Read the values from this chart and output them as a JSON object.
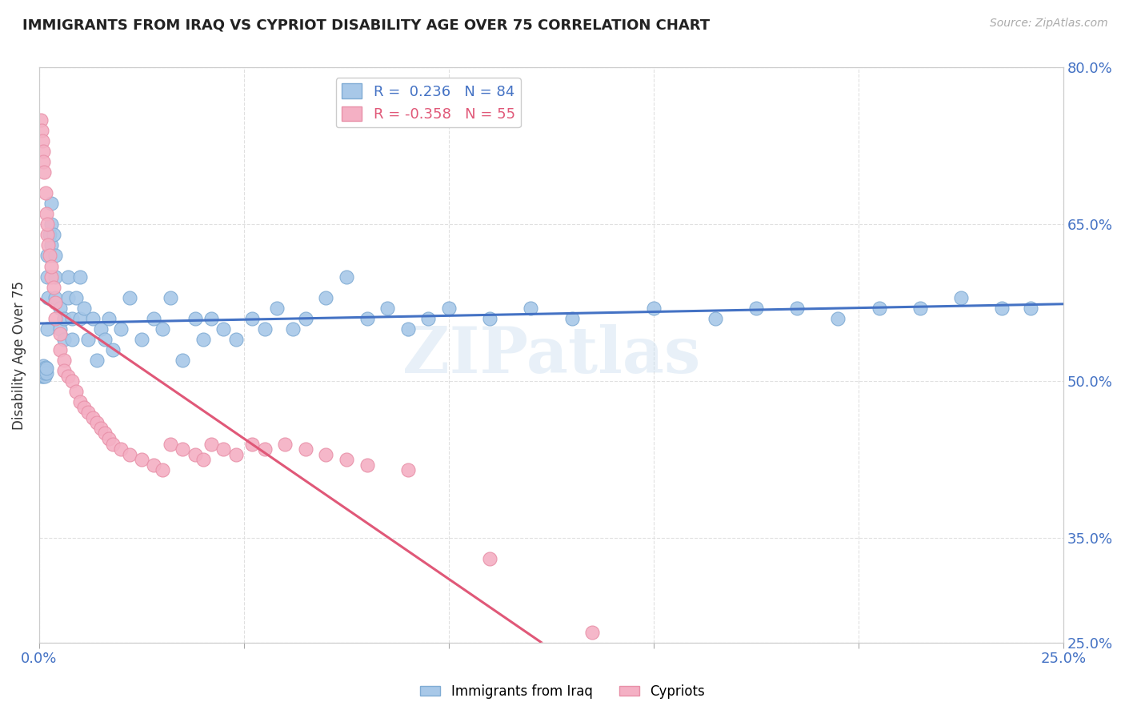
{
  "title": "IMMIGRANTS FROM IRAQ VS CYPRIOT DISABILITY AGE OVER 75 CORRELATION CHART",
  "source": "Source: ZipAtlas.com",
  "ylabel": "Disability Age Over 75",
  "xlim": [
    0.0,
    0.25
  ],
  "ylim": [
    0.25,
    0.8
  ],
  "xticks": [
    0.0,
    0.05,
    0.1,
    0.15,
    0.2,
    0.25
  ],
  "yticks": [
    0.25,
    0.35,
    0.5,
    0.65,
    0.8
  ],
  "watermark": "ZIPatlas",
  "legend_entries": [
    {
      "label": "Immigrants from Iraq",
      "R": "0.236",
      "N": 84,
      "color": "#a8c4e0"
    },
    {
      "label": "Cypriots",
      "R": "-0.358",
      "N": 55,
      "color": "#f4a7b9"
    }
  ],
  "iraq_x": [
    0.0003,
    0.0005,
    0.0006,
    0.0007,
    0.0008,
    0.001,
    0.001,
    0.001,
    0.001,
    0.0012,
    0.0013,
    0.0014,
    0.0015,
    0.0016,
    0.0017,
    0.0018,
    0.002,
    0.002,
    0.002,
    0.0022,
    0.0025,
    0.003,
    0.003,
    0.003,
    0.0035,
    0.004,
    0.004,
    0.004,
    0.005,
    0.005,
    0.006,
    0.006,
    0.007,
    0.007,
    0.008,
    0.008,
    0.009,
    0.01,
    0.01,
    0.011,
    0.012,
    0.013,
    0.014,
    0.015,
    0.016,
    0.017,
    0.018,
    0.02,
    0.022,
    0.025,
    0.028,
    0.03,
    0.032,
    0.035,
    0.038,
    0.04,
    0.042,
    0.045,
    0.048,
    0.052,
    0.055,
    0.058,
    0.062,
    0.065,
    0.07,
    0.075,
    0.08,
    0.085,
    0.09,
    0.095,
    0.1,
    0.11,
    0.12,
    0.13,
    0.15,
    0.165,
    0.175,
    0.185,
    0.195,
    0.205,
    0.215,
    0.225,
    0.235,
    0.242
  ],
  "iraq_y": [
    0.508,
    0.505,
    0.51,
    0.512,
    0.507,
    0.505,
    0.508,
    0.512,
    0.515,
    0.51,
    0.505,
    0.508,
    0.513,
    0.51,
    0.508,
    0.512,
    0.55,
    0.6,
    0.62,
    0.58,
    0.64,
    0.65,
    0.63,
    0.67,
    0.64,
    0.6,
    0.62,
    0.58,
    0.55,
    0.57,
    0.54,
    0.56,
    0.6,
    0.58,
    0.56,
    0.54,
    0.58,
    0.56,
    0.6,
    0.57,
    0.54,
    0.56,
    0.52,
    0.55,
    0.54,
    0.56,
    0.53,
    0.55,
    0.58,
    0.54,
    0.56,
    0.55,
    0.58,
    0.52,
    0.56,
    0.54,
    0.56,
    0.55,
    0.54,
    0.56,
    0.55,
    0.57,
    0.55,
    0.56,
    0.58,
    0.6,
    0.56,
    0.57,
    0.55,
    0.56,
    0.57,
    0.56,
    0.57,
    0.56,
    0.57,
    0.56,
    0.57,
    0.57,
    0.56,
    0.57,
    0.57,
    0.58,
    0.57,
    0.57
  ],
  "cyprus_x": [
    0.0003,
    0.0005,
    0.0007,
    0.001,
    0.001,
    0.0012,
    0.0015,
    0.0018,
    0.002,
    0.002,
    0.0022,
    0.0025,
    0.003,
    0.003,
    0.0035,
    0.004,
    0.004,
    0.005,
    0.005,
    0.006,
    0.006,
    0.007,
    0.008,
    0.009,
    0.01,
    0.011,
    0.012,
    0.013,
    0.014,
    0.015,
    0.016,
    0.017,
    0.018,
    0.02,
    0.022,
    0.025,
    0.028,
    0.03,
    0.032,
    0.035,
    0.038,
    0.04,
    0.042,
    0.045,
    0.048,
    0.052,
    0.055,
    0.06,
    0.065,
    0.07,
    0.075,
    0.08,
    0.09,
    0.11,
    0.135
  ],
  "cyprus_y": [
    0.75,
    0.74,
    0.73,
    0.72,
    0.71,
    0.7,
    0.68,
    0.66,
    0.64,
    0.65,
    0.63,
    0.62,
    0.6,
    0.61,
    0.59,
    0.575,
    0.56,
    0.545,
    0.53,
    0.52,
    0.51,
    0.505,
    0.5,
    0.49,
    0.48,
    0.475,
    0.47,
    0.465,
    0.46,
    0.455,
    0.45,
    0.445,
    0.44,
    0.435,
    0.43,
    0.425,
    0.42,
    0.415,
    0.44,
    0.435,
    0.43,
    0.425,
    0.44,
    0.435,
    0.43,
    0.44,
    0.435,
    0.44,
    0.435,
    0.43,
    0.425,
    0.42,
    0.415,
    0.33,
    0.26
  ],
  "background_color": "#ffffff",
  "grid_color": "#e0e0e0",
  "blue_line_color": "#4472c4",
  "pink_line_color": "#e05878",
  "pink_line_dash_color": "#f0b0c0",
  "blue_dot_color": "#a8c8e8",
  "pink_dot_color": "#f4b0c4",
  "blue_dot_edge": "#80acd4",
  "pink_dot_edge": "#e890a8"
}
